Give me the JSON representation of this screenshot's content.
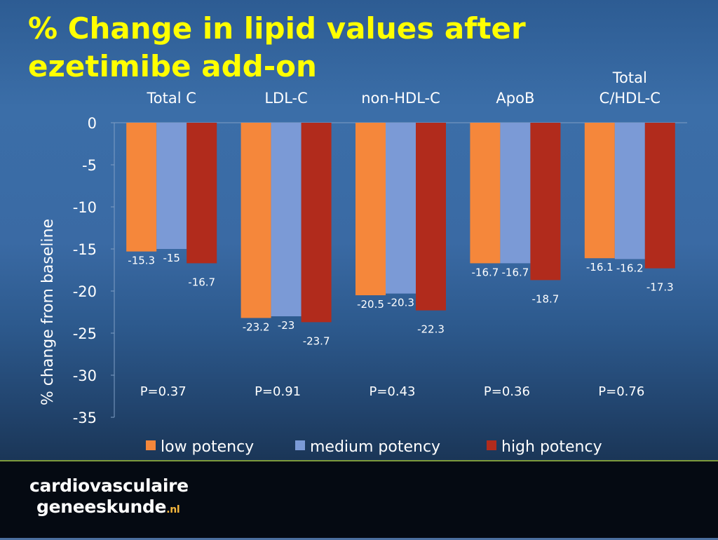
{
  "title_line1": "% Change in lipid values after",
  "title_line2": "ezetimibe add-on",
  "chart_data": {
    "type": "bar",
    "categories": [
      [
        "Total C"
      ],
      [
        "LDL-C"
      ],
      [
        "non-HDL-C"
      ],
      [
        "ApoB"
      ],
      [
        "Total",
        "C/HDL-C"
      ]
    ],
    "series": [
      {
        "name": "low potency",
        "color": "#f5873b",
        "values": [
          -15.3,
          -23.2,
          -20.5,
          -16.7,
          -16.1
        ]
      },
      {
        "name": "medium potency",
        "color": "#7b9ad6",
        "values": [
          -15,
          -23,
          -20.3,
          -16.7,
          -16.2
        ]
      },
      {
        "name": "high potency",
        "color": "#b12b1c",
        "values": [
          -16.7,
          -23.7,
          -22.3,
          -18.7,
          -17.3
        ]
      }
    ],
    "p_values": [
      "P=0.37",
      "P=0.91",
      "P=0.43",
      "P=0.36",
      "P=0.76"
    ],
    "ylabel": "% change from baseline",
    "ylim": [
      -35,
      0
    ],
    "yticks": [
      0,
      -5,
      -10,
      -15,
      -20,
      -25,
      -30,
      -35
    ],
    "legend_position": "bottom",
    "grid": false
  },
  "footer": {
    "logo_line1": "cardiovasculaire",
    "logo_line2": "geneeskunde",
    "logo_tld": ".nl"
  }
}
